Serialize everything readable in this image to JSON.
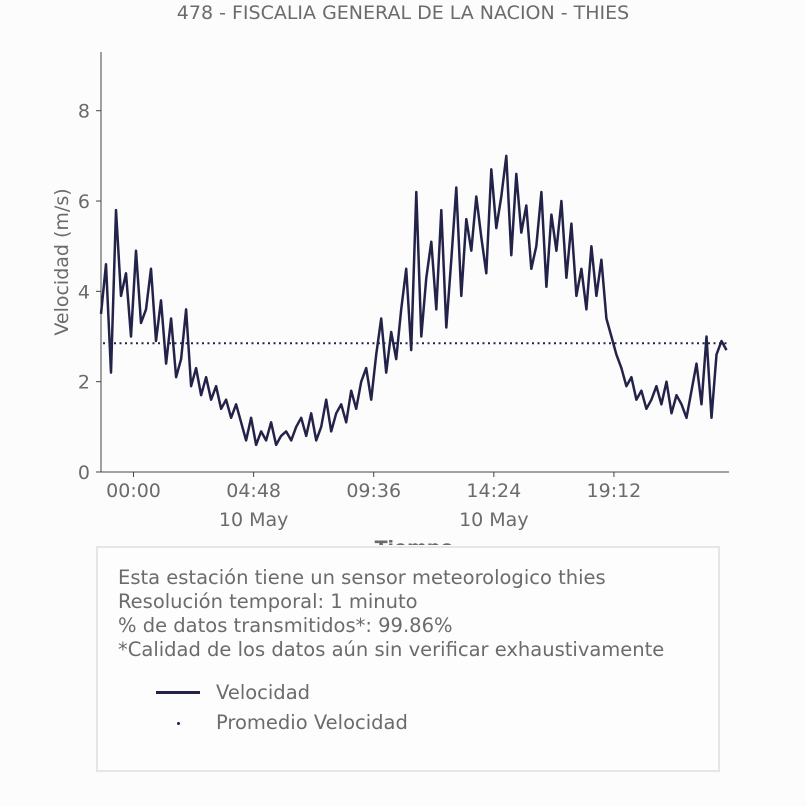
{
  "title": "478 - FISCALIA GENERAL DE LA NACION - THIES",
  "colors": {
    "series": "#23234a",
    "text": "#6b6b6b",
    "axis": "#444444"
  },
  "info": {
    "lines": [
      "Esta estación tiene un sensor meteorologico thies",
      "Resolución temporal: 1 minuto",
      "% de datos transmitidos*: 99.86%",
      "*Calidad de los datos aún sin verificar exhaustivamente"
    ]
  },
  "legend": {
    "line_label": "Velocidad",
    "dot_label": "Promedio Velocidad"
  },
  "chart_data": {
    "type": "line",
    "title": "478 - FISCALIA GENERAL DE LA NACION - THIES",
    "xlabel": "Tiempo",
    "ylabel": "Velocidad (m/s)",
    "x_unit": "hours relative to 10 May 00:00",
    "xlim": [
      -1.3,
      23.8
    ],
    "ylim": [
      0,
      9.3
    ],
    "y_ticks": [
      0,
      2,
      4,
      6,
      8
    ],
    "x_ticks": [
      {
        "value": 0,
        "label": "00:00",
        "sublabel": ""
      },
      {
        "value": 4.8,
        "label": "04:48",
        "sublabel": "10 May"
      },
      {
        "value": 9.6,
        "label": "09:36",
        "sublabel": ""
      },
      {
        "value": 14.4,
        "label": "14:24",
        "sublabel": "10 May"
      },
      {
        "value": 19.2,
        "label": "19:12",
        "sublabel": ""
      }
    ],
    "mean_line": {
      "name": "Promedio Velocidad",
      "value": 2.85
    },
    "series": [
      {
        "name": "Velocidad",
        "x": [
          -1.3,
          -1.1,
          -0.9,
          -0.7,
          -0.5,
          -0.3,
          -0.1,
          0.1,
          0.3,
          0.5,
          0.7,
          0.9,
          1.1,
          1.3,
          1.5,
          1.7,
          1.9,
          2.1,
          2.3,
          2.5,
          2.7,
          2.9,
          3.1,
          3.3,
          3.5,
          3.7,
          3.9,
          4.1,
          4.3,
          4.5,
          4.7,
          4.9,
          5.1,
          5.3,
          5.5,
          5.7,
          5.9,
          6.1,
          6.3,
          6.5,
          6.7,
          6.9,
          7.1,
          7.3,
          7.5,
          7.7,
          7.9,
          8.1,
          8.3,
          8.5,
          8.7,
          8.9,
          9.1,
          9.3,
          9.5,
          9.7,
          9.9,
          10.1,
          10.3,
          10.5,
          10.7,
          10.9,
          11.1,
          11.3,
          11.5,
          11.7,
          11.9,
          12.1,
          12.3,
          12.5,
          12.7,
          12.9,
          13.1,
          13.3,
          13.5,
          13.7,
          13.9,
          14.1,
          14.3,
          14.5,
          14.7,
          14.9,
          15.1,
          15.3,
          15.5,
          15.7,
          15.9,
          16.1,
          16.3,
          16.5,
          16.7,
          16.9,
          17.1,
          17.3,
          17.5,
          17.7,
          17.9,
          18.1,
          18.3,
          18.5,
          18.7,
          18.9,
          19.1,
          19.3,
          19.5,
          19.7,
          19.9,
          20.1,
          20.3,
          20.5,
          20.7,
          20.9,
          21.1,
          21.3,
          21.5,
          21.7,
          21.9,
          22.1,
          22.3,
          22.5,
          22.7,
          22.9,
          23.1,
          23.3,
          23.5,
          23.7
        ],
        "values": [
          3.5,
          4.6,
          2.2,
          5.8,
          3.9,
          4.4,
          3.0,
          4.9,
          3.3,
          3.6,
          4.5,
          2.9,
          3.8,
          2.4,
          3.4,
          2.1,
          2.5,
          3.6,
          1.9,
          2.3,
          1.7,
          2.1,
          1.6,
          1.9,
          1.4,
          1.6,
          1.2,
          1.5,
          1.1,
          0.7,
          1.2,
          0.6,
          0.9,
          0.7,
          1.1,
          0.6,
          0.8,
          0.9,
          0.7,
          1.0,
          1.2,
          0.8,
          1.3,
          0.7,
          1.0,
          1.6,
          0.9,
          1.3,
          1.5,
          1.1,
          1.8,
          1.4,
          2.0,
          2.3,
          1.6,
          2.6,
          3.4,
          2.2,
          3.1,
          2.5,
          3.6,
          4.5,
          2.7,
          6.2,
          3.0,
          4.3,
          5.1,
          3.6,
          5.8,
          3.2,
          4.7,
          6.3,
          3.9,
          5.6,
          4.9,
          6.1,
          5.2,
          4.4,
          6.7,
          5.4,
          6.1,
          7.0,
          4.8,
          6.6,
          5.3,
          5.9,
          4.5,
          5.0,
          6.2,
          4.1,
          5.7,
          4.9,
          6.0,
          4.3,
          5.5,
          3.9,
          4.5,
          3.6,
          5.0,
          3.9,
          4.7,
          3.4,
          3.0,
          2.6,
          2.3,
          1.9,
          2.1,
          1.6,
          1.8,
          1.4,
          1.6,
          1.9,
          1.5,
          2.0,
          1.3,
          1.7,
          1.5,
          1.2,
          1.8,
          2.4,
          1.5,
          3.0,
          1.2,
          2.6,
          2.9,
          2.7
        ]
      }
    ]
  }
}
